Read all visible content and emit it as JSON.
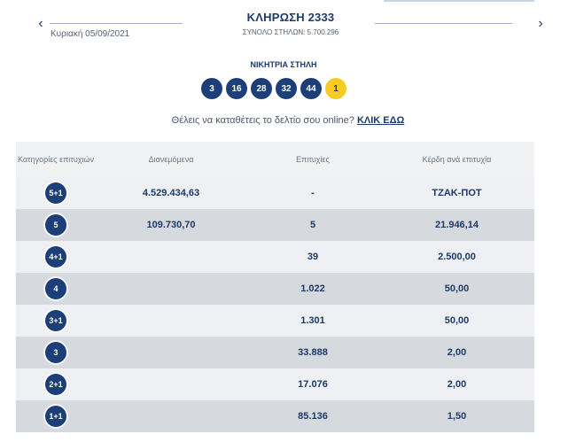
{
  "header": {
    "prev_arrow": "‹",
    "next_arrow": "›",
    "date": "Κυριακή 05/09/2021",
    "title": "ΚΛΗΡΩΣΗ 2333",
    "total_columns": "ΣΥΝΟΛΟ ΣΤΗΛΩΝ: 5.700.296"
  },
  "winning": {
    "label": "ΝΙΚΗΤΡΙΑ ΣΤΗΛΗ",
    "numbers": [
      "3",
      "16",
      "28",
      "32",
      "44"
    ],
    "joker": "1"
  },
  "cta": {
    "text": "Θέλεις να καταθέτεις το δελτίο σου online? ",
    "link": "ΚΛΙΚ ΕΔΩ"
  },
  "table": {
    "headers": {
      "categories": "Κατηγορίες επιτυχιών",
      "distributed": "Διανεμόμενα",
      "winners": "Επιτυχίες",
      "prize": "Κέρδη ανά επιτυχία"
    },
    "rows": [
      {
        "category": "5+1",
        "distributed": "4.529.434,63",
        "winners": "-",
        "prize": "ΤΖΑΚ-ΠΟΤ"
      },
      {
        "category": "5",
        "distributed": "109.730,70",
        "winners": "5",
        "prize": "21.946,14"
      },
      {
        "category": "4+1",
        "distributed": "",
        "winners": "39",
        "prize": "2.500,00"
      },
      {
        "category": "4",
        "distributed": "",
        "winners": "1.022",
        "prize": "50,00"
      },
      {
        "category": "3+1",
        "distributed": "",
        "winners": "1.301",
        "prize": "50,00"
      },
      {
        "category": "3",
        "distributed": "",
        "winners": "33.888",
        "prize": "2,00"
      },
      {
        "category": "2+1",
        "distributed": "",
        "winners": "17.076",
        "prize": "2,00"
      },
      {
        "category": "1+1",
        "distributed": "",
        "winners": "85.136",
        "prize": "1,50"
      }
    ]
  },
  "colors": {
    "brand_navy": "#1c3f7a",
    "joker_yellow": "#f6cc24",
    "row_light": "#eef0f3",
    "row_dark": "#d6d9de"
  }
}
